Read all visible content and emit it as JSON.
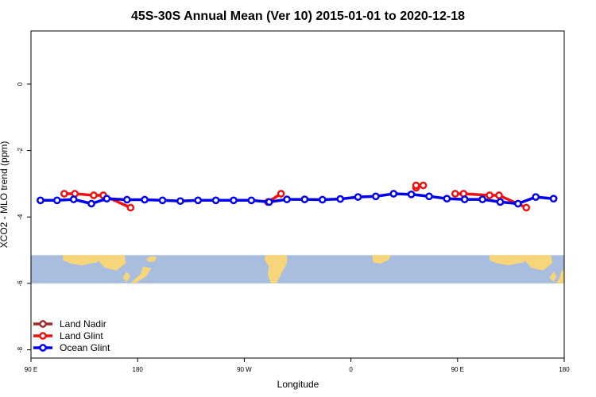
{
  "chart_data": {
    "type": "line",
    "title": "45S-30S Annual Mean (Ver 10)   2015-01-01 to 2020-12-18",
    "xlabel": "Longitude",
    "ylabel": "XCO2 - MLO trend (ppm)",
    "xlim": [
      90,
      540
    ],
    "ylim": [
      -8.25,
      1.6
    ],
    "x_ticks": [
      {
        "value": 90,
        "label": "90 E"
      },
      {
        "value": 180,
        "label": "180"
      },
      {
        "value": 270,
        "label": "90 W"
      },
      {
        "value": 360,
        "label": "0"
      },
      {
        "value": 450,
        "label": "90 E"
      },
      {
        "value": 540,
        "label": "180"
      }
    ],
    "y_ticks": [
      {
        "value": 0,
        "label": "0"
      },
      {
        "value": -2,
        "label": "-2"
      },
      {
        "value": -4,
        "label": "-4"
      },
      {
        "value": -6,
        "label": "-6"
      },
      {
        "value": -8,
        "label": "-8"
      }
    ],
    "grid": false,
    "legend_position": "bottom-left",
    "map_strip": {
      "y_top": -5.15,
      "y_bottom": -6.0,
      "ocean_color": "#a9bddf",
      "land_color": "#f7d57a"
    },
    "series": [
      {
        "name": "Land Nadir",
        "color": "#9b2d2d",
        "segments": []
      },
      {
        "name": "Land Glint",
        "color": "#ee1111",
        "segments": [
          [
            [
              118,
              -3.3
            ],
            [
              127,
              -3.3
            ],
            [
              143,
              -3.35
            ],
            [
              151,
              -3.35
            ],
            [
              174,
              -3.72
            ]
          ],
          [
            [
              290,
              -3.55
            ],
            [
              301,
              -3.3
            ]
          ],
          [
            [
              415,
              -3.12
            ],
            [
              415,
              -3.05
            ],
            [
              421,
              -3.05
            ]
          ],
          [
            [
              448,
              -3.3
            ],
            [
              455,
              -3.3
            ],
            [
              477,
              -3.35
            ],
            [
              485,
              -3.35
            ],
            [
              508,
              -3.72
            ]
          ]
        ]
      },
      {
        "name": "Ocean Glint",
        "color": "#0000ee",
        "segments": [
          [
            [
              98,
              -3.5
            ],
            [
              112,
              -3.5
            ],
            [
              126,
              -3.47
            ],
            [
              141,
              -3.6
            ],
            [
              154,
              -3.45
            ],
            [
              171,
              -3.48
            ],
            [
              186,
              -3.48
            ],
            [
              201,
              -3.5
            ],
            [
              216,
              -3.52
            ],
            [
              231,
              -3.5
            ],
            [
              246,
              -3.5
            ],
            [
              261,
              -3.5
            ],
            [
              276,
              -3.5
            ],
            [
              291,
              -3.55
            ],
            [
              306,
              -3.47
            ],
            [
              321,
              -3.47
            ],
            [
              336,
              -3.48
            ],
            [
              351,
              -3.46
            ],
            [
              366,
              -3.4
            ],
            [
              381,
              -3.38
            ],
            [
              396,
              -3.3
            ],
            [
              411,
              -3.32
            ],
            [
              426,
              -3.38
            ],
            [
              441,
              -3.45
            ],
            [
              456,
              -3.47
            ],
            [
              471,
              -3.47
            ],
            [
              486,
              -3.55
            ],
            [
              501,
              -3.6
            ],
            [
              516,
              -3.4
            ],
            [
              531,
              -3.45
            ]
          ]
        ]
      }
    ]
  }
}
